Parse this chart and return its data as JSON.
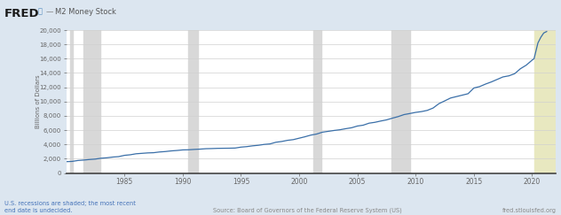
{
  "title": "M2 Money Stock",
  "ylabel": "Billions of Dollars",
  "source_text": "Source: Board of Governors of the Federal Reserve System (US)",
  "recession_text": "U.S. recessions are shaded; the most recent\nend date is undecided.",
  "fred_url": "fred.stlouisfed.org",
  "bg_color": "#dce6f0",
  "plot_bg_color": "#ffffff",
  "line_color": "#3a6fa8",
  "recession_color": "#d8d8d8",
  "undecided_recession_color": "#e8e8c0",
  "xlim_start": 1980.0,
  "xlim_end": 2022.0,
  "ylim": [
    0,
    20000
  ],
  "yticks": [
    0,
    2000,
    4000,
    6000,
    8000,
    10000,
    12000,
    14000,
    16000,
    18000,
    20000
  ],
  "xticks": [
    1985,
    1990,
    1995,
    2000,
    2005,
    2010,
    2015,
    2020
  ],
  "recession_bands": [
    [
      1980.3,
      1980.6
    ],
    [
      1981.5,
      1982.9
    ],
    [
      1990.5,
      1991.3
    ],
    [
      2001.2,
      2001.9
    ],
    [
      2007.9,
      2009.5
    ]
  ],
  "undecided_band_start": 2020.17,
  "undecided_band_end": 2022.0,
  "data_years": [
    1980.0,
    1980.5,
    1981.0,
    1981.5,
    1982.0,
    1982.5,
    1983.0,
    1983.5,
    1984.0,
    1984.5,
    1985.0,
    1985.5,
    1986.0,
    1986.5,
    1987.0,
    1987.5,
    1988.0,
    1988.5,
    1989.0,
    1989.5,
    1990.0,
    1990.5,
    1991.0,
    1991.5,
    1992.0,
    1992.5,
    1993.0,
    1993.5,
    1994.0,
    1994.5,
    1995.0,
    1995.5,
    1996.0,
    1996.5,
    1997.0,
    1997.5,
    1998.0,
    1998.5,
    1999.0,
    1999.5,
    2000.0,
    2000.5,
    2001.0,
    2001.5,
    2002.0,
    2002.5,
    2003.0,
    2003.5,
    2004.0,
    2004.5,
    2005.0,
    2005.5,
    2006.0,
    2006.5,
    2007.0,
    2007.5,
    2008.0,
    2008.5,
    2009.0,
    2009.5,
    2010.0,
    2010.5,
    2011.0,
    2011.5,
    2012.0,
    2012.5,
    2013.0,
    2013.5,
    2014.0,
    2014.5,
    2015.0,
    2015.5,
    2016.0,
    2016.5,
    2017.0,
    2017.5,
    2018.0,
    2018.5,
    2019.0,
    2019.5,
    2020.0,
    2020.17,
    2020.5,
    2020.75,
    2021.0,
    2021.25
  ],
  "data_values": [
    1596,
    1630,
    1760,
    1820,
    1900,
    1960,
    2080,
    2140,
    2240,
    2300,
    2480,
    2560,
    2700,
    2760,
    2820,
    2850,
    2950,
    3010,
    3100,
    3160,
    3240,
    3260,
    3310,
    3350,
    3410,
    3430,
    3460,
    3470,
    3480,
    3500,
    3630,
    3700,
    3810,
    3890,
    4010,
    4080,
    4310,
    4420,
    4580,
    4680,
    4880,
    5080,
    5310,
    5460,
    5720,
    5840,
    5960,
    6060,
    6210,
    6340,
    6580,
    6700,
    6980,
    7100,
    7280,
    7440,
    7680,
    7900,
    8180,
    8330,
    8490,
    8600,
    8770,
    9100,
    9710,
    10100,
    10500,
    10700,
    10900,
    11100,
    11900,
    12100,
    12450,
    12750,
    13100,
    13450,
    13600,
    13900,
    14600,
    15100,
    15800,
    16000,
    18200,
    19000,
    19600,
    19800
  ]
}
